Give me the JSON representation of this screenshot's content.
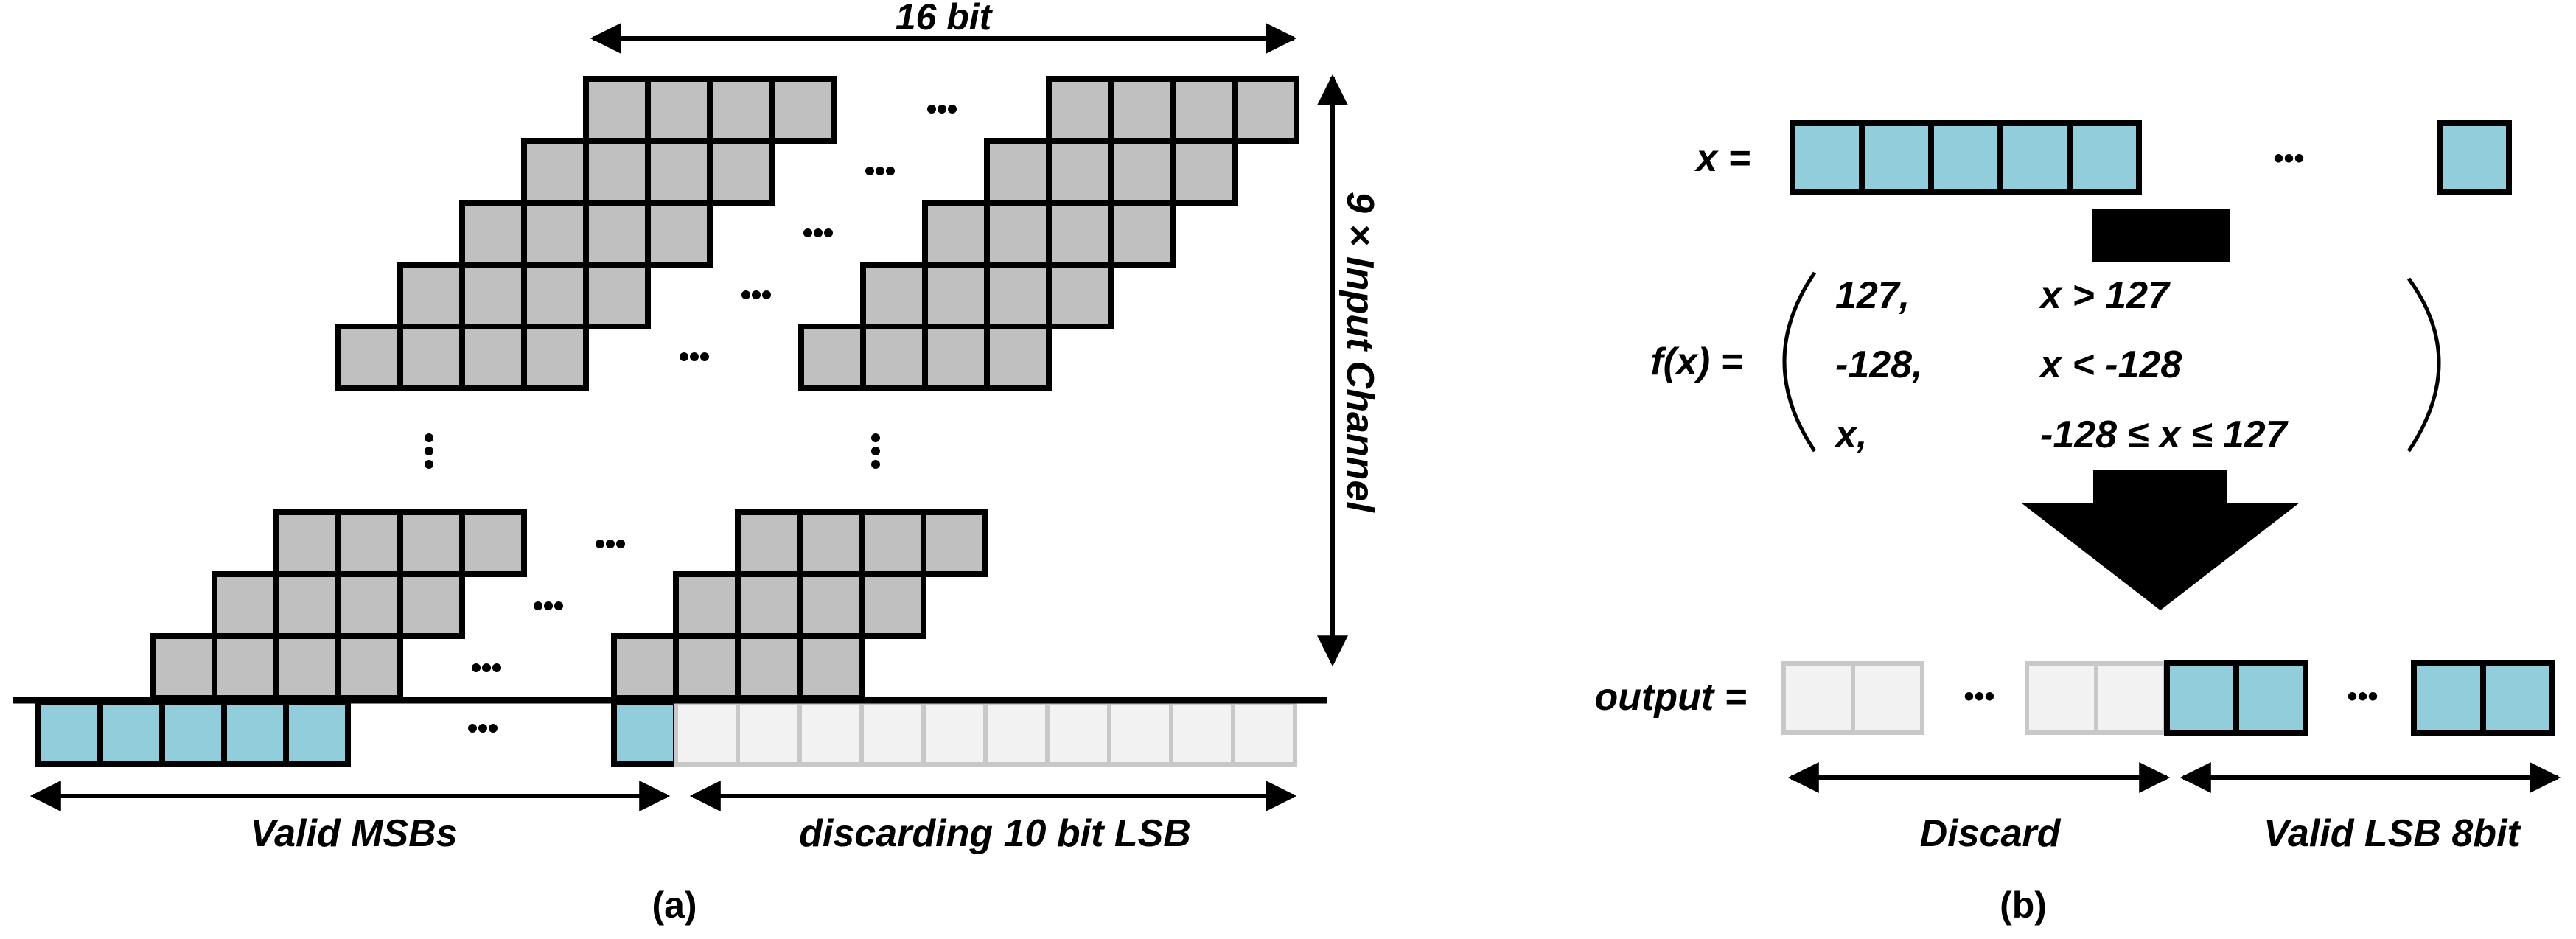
{
  "panel_a": {
    "width_label": "16 bit",
    "height_label": "9 × Input Channel",
    "left_label": "Valid MSBs",
    "right_label": "discarding 10 bit LSB",
    "caption": "(a)"
  },
  "panel_b": {
    "x_label": "x =",
    "fx_label": "f(x) =",
    "cases": [
      {
        "value": "127,",
        "condition": "x > 127"
      },
      {
        "value": "-128,",
        "condition": "x < -128"
      },
      {
        "value": "x,",
        "condition": "-128 ≤ x ≤ 127"
      }
    ],
    "output_label": "output  =",
    "discard_label": "Discard",
    "valid_label": "Valid LSB 8bit",
    "caption": "(b)"
  },
  "ellipsis": "•••",
  "colors": {
    "gray_cell": "#c0c0c0",
    "blue_cell": "#92cddc",
    "faded_cell": "#f2f2f2",
    "faded_border": "#c8c8c8",
    "ink": "#000000"
  }
}
